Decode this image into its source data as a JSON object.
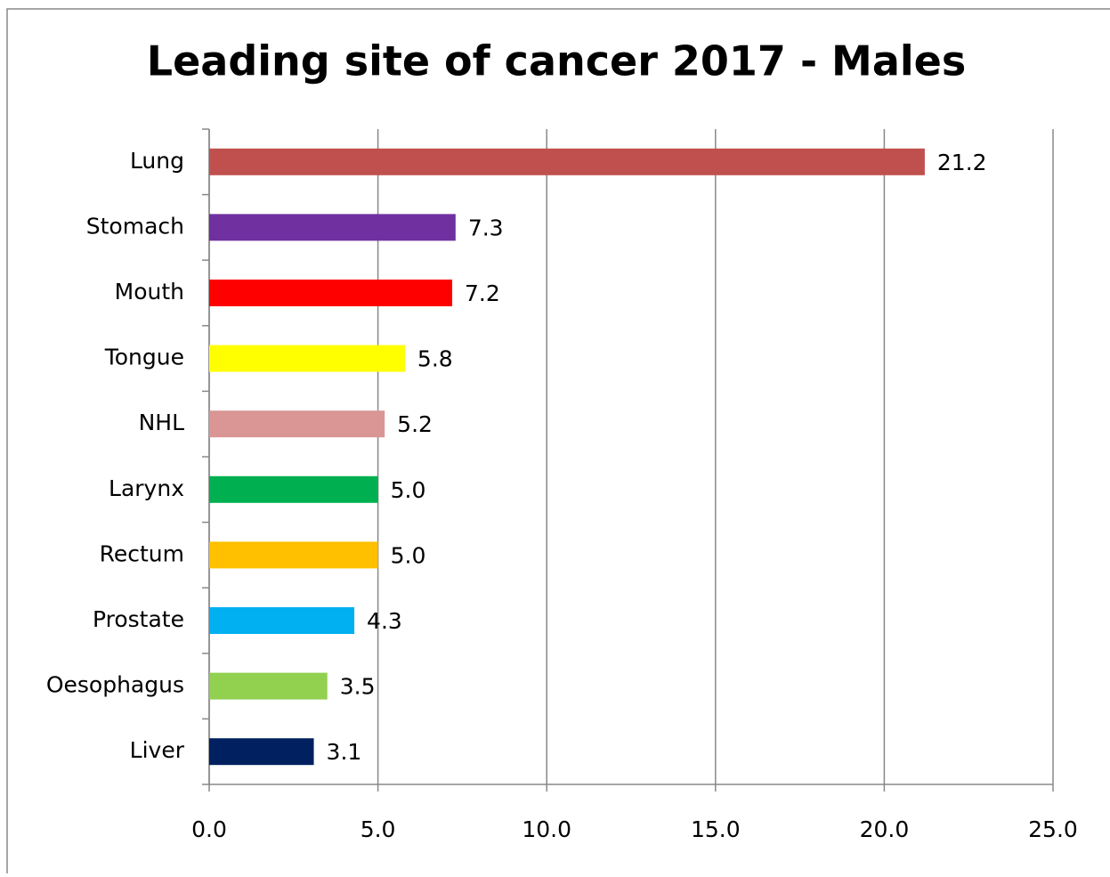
{
  "chart_data": {
    "type": "hbar",
    "title": "Leading site of cancer 2017 - Males",
    "categories": [
      "Lung",
      "Stomach",
      "Mouth",
      "Tongue",
      "NHL",
      "Larynx",
      "Rectum",
      "Prostate",
      "Oesophagus",
      "Liver"
    ],
    "values": [
      21.2,
      7.3,
      7.2,
      5.8,
      5.2,
      5.0,
      5.0,
      4.3,
      3.5,
      3.1
    ],
    "value_labels": [
      "21.2",
      "7.3",
      "7.2",
      "5.8",
      "5.2",
      "5.0",
      "5.0",
      "4.3",
      "3.5",
      "3.1"
    ],
    "colors": [
      "#c0504d",
      "#7030a0",
      "#ff0000",
      "#ffff00",
      "#d99694",
      "#00b050",
      "#ffc000",
      "#00b0f0",
      "#92d050",
      "#002060"
    ],
    "xlim": [
      0,
      25
    ],
    "xticks": [
      {
        "value": 0,
        "label": "0.0"
      },
      {
        "value": 5,
        "label": "5.0"
      },
      {
        "value": 10,
        "label": "10.0"
      },
      {
        "value": 15,
        "label": "15.0"
      },
      {
        "value": 20,
        "label": "20.0"
      },
      {
        "value": 25,
        "label": "25.0"
      }
    ],
    "grid": true
  }
}
